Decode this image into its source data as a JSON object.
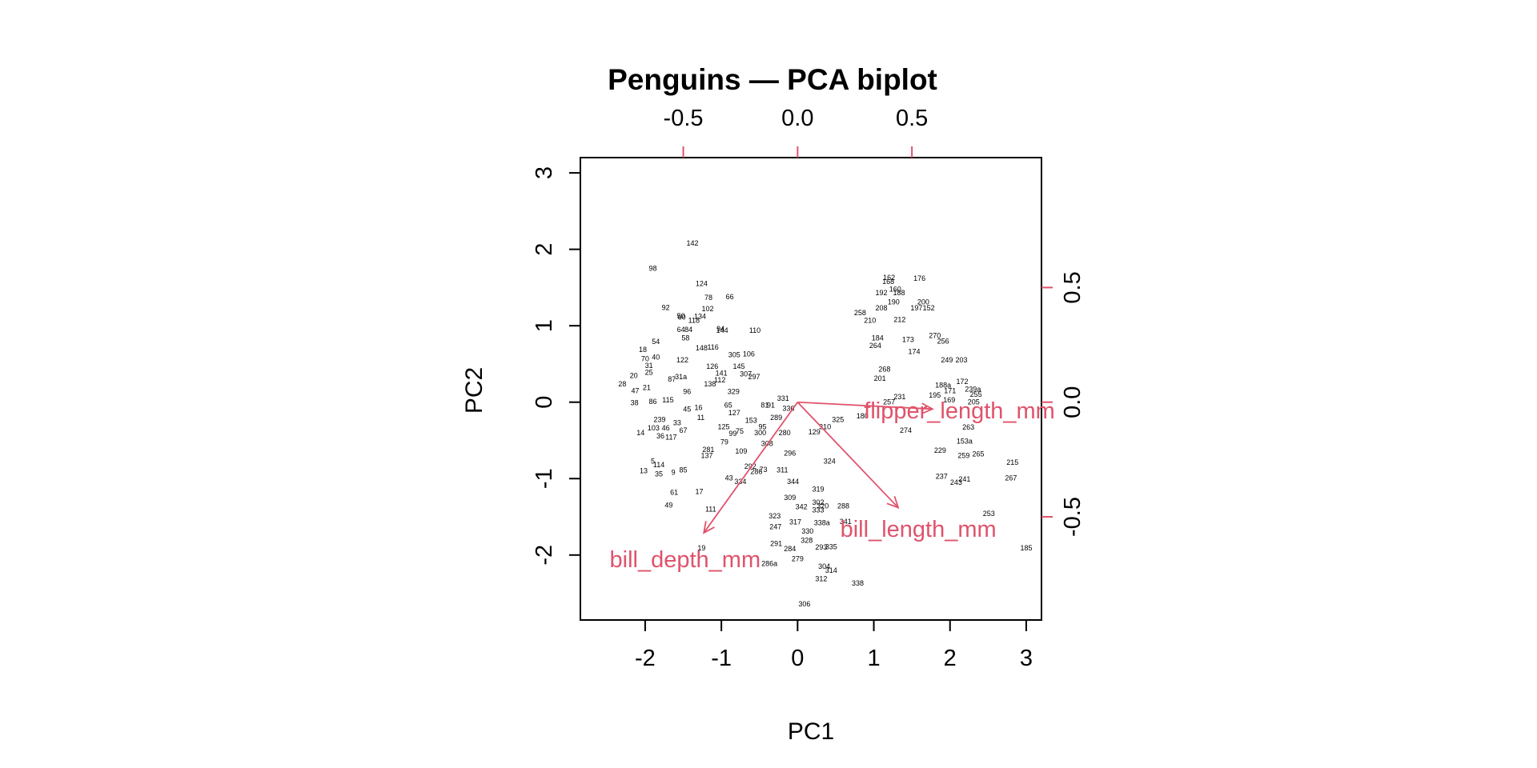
{
  "chart_data": {
    "type": "scatter",
    "title": "Penguins — PCA biplot",
    "xlabel": "PC1",
    "ylabel": "PC2",
    "xlim": [
      -2.85,
      3.2
    ],
    "ylim": [
      -2.85,
      3.2
    ],
    "xticks": [
      "-2",
      "-1",
      "0",
      "1",
      "2",
      "3"
    ],
    "yticks": [
      "-2",
      "-1",
      "0",
      "1",
      "2",
      "3"
    ],
    "top_axis_ticks": [
      "-0.5",
      "0.0",
      "0.5"
    ],
    "right_axis_ticks": [
      "-0.5",
      "0.0",
      "0.5"
    ],
    "loadings_scale": 3.0,
    "arrow_color": "#DF536B",
    "loadings": [
      {
        "name": "bill_depth_mm",
        "x": -0.41,
        "y": -0.57
      },
      {
        "name": "bill_length_mm",
        "x": 0.44,
        "y": -0.46
      },
      {
        "name": "flipper_length_mm",
        "x": 0.59,
        "y": -0.03
      }
    ],
    "observations": [
      {
        "label": "142",
        "x": -1.38,
        "y": 2.08
      },
      {
        "label": "98",
        "x": -1.9,
        "y": 1.75
      },
      {
        "label": "124",
        "x": -1.26,
        "y": 1.55
      },
      {
        "label": "78",
        "x": -1.17,
        "y": 1.37
      },
      {
        "label": "66",
        "x": -0.89,
        "y": 1.38
      },
      {
        "label": "92",
        "x": -1.73,
        "y": 1.24
      },
      {
        "label": "102",
        "x": -1.18,
        "y": 1.22
      },
      {
        "label": "50",
        "x": -1.53,
        "y": 1.13
      },
      {
        "label": "60",
        "x": -1.52,
        "y": 1.11
      },
      {
        "label": "118",
        "x": -1.36,
        "y": 1.07
      },
      {
        "label": "134",
        "x": -1.28,
        "y": 1.12
      },
      {
        "label": "94",
        "x": -1.01,
        "y": 0.96
      },
      {
        "label": "144",
        "x": -0.99,
        "y": 0.94
      },
      {
        "label": "110",
        "x": -0.56,
        "y": 0.94
      },
      {
        "label": "64",
        "x": -1.53,
        "y": 0.95
      },
      {
        "label": "84",
        "x": -1.43,
        "y": 0.95
      },
      {
        "label": "58",
        "x": -1.47,
        "y": 0.84
      },
      {
        "label": "54",
        "x": -1.86,
        "y": 0.79
      },
      {
        "label": "18",
        "x": -2.03,
        "y": 0.69
      },
      {
        "label": "40",
        "x": -1.86,
        "y": 0.59
      },
      {
        "label": "70",
        "x": -2.0,
        "y": 0.57
      },
      {
        "label": "31",
        "x": -1.95,
        "y": 0.48
      },
      {
        "label": "25",
        "x": -1.95,
        "y": 0.39
      },
      {
        "label": "20",
        "x": -2.15,
        "y": 0.35
      },
      {
        "label": "28",
        "x": -2.3,
        "y": 0.24
      },
      {
        "label": "47",
        "x": -2.13,
        "y": 0.15
      },
      {
        "label": "21",
        "x": -1.98,
        "y": 0.19
      },
      {
        "label": "38",
        "x": -2.14,
        "y": -0.01
      },
      {
        "label": "86",
        "x": -1.9,
        "y": 0.01
      },
      {
        "label": "14",
        "x": -2.06,
        "y": -0.4
      },
      {
        "label": "13",
        "x": -2.02,
        "y": -0.9
      },
      {
        "label": "5",
        "x": -1.9,
        "y": -0.77
      },
      {
        "label": "114",
        "x": -1.82,
        "y": -0.82
      },
      {
        "label": "35",
        "x": -1.82,
        "y": -0.94
      },
      {
        "label": "9",
        "x": -1.63,
        "y": -0.92
      },
      {
        "label": "85",
        "x": -1.5,
        "y": -0.89
      },
      {
        "label": "61",
        "x": -1.62,
        "y": -1.18
      },
      {
        "label": "49",
        "x": -1.69,
        "y": -1.35
      },
      {
        "label": "17",
        "x": -1.29,
        "y": -1.17
      },
      {
        "label": "111",
        "x": -1.14,
        "y": -1.4
      },
      {
        "label": "19",
        "x": -1.26,
        "y": -1.91
      },
      {
        "label": "43",
        "x": -0.9,
        "y": -0.99
      },
      {
        "label": "334",
        "x": -0.75,
        "y": -1.04
      },
      {
        "label": "103",
        "x": -1.89,
        "y": -0.34
      },
      {
        "label": "36",
        "x": -1.8,
        "y": -0.44
      },
      {
        "label": "117",
        "x": -1.66,
        "y": -0.46
      },
      {
        "label": "46",
        "x": -1.73,
        "y": -0.34
      },
      {
        "label": "33",
        "x": -1.58,
        "y": -0.27
      },
      {
        "label": "67",
        "x": -1.5,
        "y": -0.37
      },
      {
        "label": "239",
        "x": -1.81,
        "y": -0.23
      },
      {
        "label": "45",
        "x": -1.45,
        "y": -0.09
      },
      {
        "label": "11",
        "x": -1.27,
        "y": -0.2
      },
      {
        "label": "16",
        "x": -1.3,
        "y": -0.07
      },
      {
        "label": "115",
        "x": -1.7,
        "y": 0.03
      },
      {
        "label": "96",
        "x": -1.45,
        "y": 0.14
      },
      {
        "label": "87",
        "x": -1.65,
        "y": 0.3
      },
      {
        "label": "31a",
        "x": -1.53,
        "y": 0.33
      },
      {
        "label": "122",
        "x": -1.51,
        "y": 0.55
      },
      {
        "label": "148",
        "x": -1.26,
        "y": 0.71
      },
      {
        "label": "116",
        "x": -1.11,
        "y": 0.72
      },
      {
        "label": "126",
        "x": -1.12,
        "y": 0.47
      },
      {
        "label": "141",
        "x": -1.0,
        "y": 0.38
      },
      {
        "label": "112",
        "x": -1.02,
        "y": 0.29
      },
      {
        "label": "138",
        "x": -1.15,
        "y": 0.24
      },
      {
        "label": "305",
        "x": -0.83,
        "y": 0.62
      },
      {
        "label": "106",
        "x": -0.64,
        "y": 0.63
      },
      {
        "label": "145",
        "x": -0.77,
        "y": 0.47
      },
      {
        "label": "307",
        "x": -0.68,
        "y": 0.37
      },
      {
        "label": "297",
        "x": -0.57,
        "y": 0.33
      },
      {
        "label": "329",
        "x": -0.84,
        "y": 0.14
      },
      {
        "label": "65",
        "x": -0.91,
        "y": -0.04
      },
      {
        "label": "127",
        "x": -0.83,
        "y": -0.14
      },
      {
        "label": "125",
        "x": -0.97,
        "y": -0.32
      },
      {
        "label": "99",
        "x": -0.85,
        "y": -0.41
      },
      {
        "label": "75",
        "x": -0.76,
        "y": -0.38
      },
      {
        "label": "81",
        "x": -0.43,
        "y": -0.04
      },
      {
        "label": "91",
        "x": -0.35,
        "y": -0.04
      },
      {
        "label": "153",
        "x": -0.61,
        "y": -0.24
      },
      {
        "label": "289",
        "x": -0.28,
        "y": -0.2
      },
      {
        "label": "95",
        "x": -0.46,
        "y": -0.32
      },
      {
        "label": "300",
        "x": -0.49,
        "y": -0.4
      },
      {
        "label": "280",
        "x": -0.17,
        "y": -0.4
      },
      {
        "label": "79",
        "x": -0.96,
        "y": -0.52
      },
      {
        "label": "281",
        "x": -1.17,
        "y": -0.62
      },
      {
        "label": "137",
        "x": -1.19,
        "y": -0.7
      },
      {
        "label": "109",
        "x": -0.74,
        "y": -0.64
      },
      {
        "label": "308",
        "x": -0.4,
        "y": -0.54
      },
      {
        "label": "296",
        "x": -0.1,
        "y": -0.67
      },
      {
        "label": "292",
        "x": -0.62,
        "y": -0.84
      },
      {
        "label": "73",
        "x": -0.45,
        "y": -0.88
      },
      {
        "label": "286",
        "x": -0.54,
        "y": -0.91
      },
      {
        "label": "311",
        "x": -0.2,
        "y": -0.89
      },
      {
        "label": "344",
        "x": -0.06,
        "y": -1.04
      },
      {
        "label": "331",
        "x": -0.19,
        "y": 0.05
      },
      {
        "label": "336",
        "x": -0.12,
        "y": -0.08
      },
      {
        "label": "310",
        "x": 0.36,
        "y": -0.32
      },
      {
        "label": "325",
        "x": 0.53,
        "y": -0.23
      },
      {
        "label": "129",
        "x": 0.22,
        "y": -0.39
      },
      {
        "label": "324",
        "x": 0.42,
        "y": -0.77
      },
      {
        "label": "319",
        "x": 0.27,
        "y": -1.14
      },
      {
        "label": "309",
        "x": -0.1,
        "y": -1.25
      },
      {
        "label": "342",
        "x": 0.05,
        "y": -1.37
      },
      {
        "label": "302",
        "x": 0.27,
        "y": -1.31
      },
      {
        "label": "320",
        "x": 0.33,
        "y": -1.36
      },
      {
        "label": "288",
        "x": 0.6,
        "y": -1.36
      },
      {
        "label": "333",
        "x": 0.27,
        "y": -1.41
      },
      {
        "label": "323",
        "x": -0.3,
        "y": -1.49
      },
      {
        "label": "317",
        "x": -0.03,
        "y": -1.57
      },
      {
        "label": "338a",
        "x": 0.32,
        "y": -1.58
      },
      {
        "label": "341",
        "x": 0.63,
        "y": -1.56
      },
      {
        "label": "247",
        "x": -0.29,
        "y": -1.63
      },
      {
        "label": "330",
        "x": 0.13,
        "y": -1.69
      },
      {
        "label": "291",
        "x": -0.28,
        "y": -1.85
      },
      {
        "label": "328",
        "x": 0.12,
        "y": -1.81
      },
      {
        "label": "284",
        "x": -0.1,
        "y": -1.92
      },
      {
        "label": "293",
        "x": 0.31,
        "y": -1.9
      },
      {
        "label": "335",
        "x": 0.44,
        "y": -1.89
      },
      {
        "label": "279",
        "x": 0.0,
        "y": -2.05
      },
      {
        "label": "286a",
        "x": -0.37,
        "y": -2.11
      },
      {
        "label": "304",
        "x": 0.35,
        "y": -2.15
      },
      {
        "label": "314",
        "x": 0.44,
        "y": -2.2
      },
      {
        "label": "312",
        "x": 0.31,
        "y": -2.31
      },
      {
        "label": "338",
        "x": 0.79,
        "y": -2.37
      },
      {
        "label": "306",
        "x": 0.09,
        "y": -2.64
      },
      {
        "label": "162",
        "x": 1.2,
        "y": 1.63
      },
      {
        "label": "176",
        "x": 1.6,
        "y": 1.62
      },
      {
        "label": "168",
        "x": 1.19,
        "y": 1.58
      },
      {
        "label": "160",
        "x": 1.28,
        "y": 1.48
      },
      {
        "label": "192",
        "x": 1.1,
        "y": 1.43
      },
      {
        "label": "188",
        "x": 1.33,
        "y": 1.43
      },
      {
        "label": "190",
        "x": 1.26,
        "y": 1.31
      },
      {
        "label": "200",
        "x": 1.65,
        "y": 1.31
      },
      {
        "label": "197",
        "x": 1.56,
        "y": 1.23
      },
      {
        "label": "152",
        "x": 1.72,
        "y": 1.23
      },
      {
        "label": "258",
        "x": 0.82,
        "y": 1.17
      },
      {
        "label": "208",
        "x": 1.1,
        "y": 1.23
      },
      {
        "label": "210",
        "x": 0.95,
        "y": 1.07
      },
      {
        "label": "212",
        "x": 1.34,
        "y": 1.08
      },
      {
        "label": "184",
        "x": 1.05,
        "y": 0.84
      },
      {
        "label": "264",
        "x": 1.02,
        "y": 0.74
      },
      {
        "label": "173",
        "x": 1.45,
        "y": 0.82
      },
      {
        "label": "270",
        "x": 1.8,
        "y": 0.87
      },
      {
        "label": "256",
        "x": 1.91,
        "y": 0.8
      },
      {
        "label": "174",
        "x": 1.53,
        "y": 0.66
      },
      {
        "label": "249",
        "x": 1.96,
        "y": 0.55
      },
      {
        "label": "203",
        "x": 2.15,
        "y": 0.55
      },
      {
        "label": "201",
        "x": 1.08,
        "y": 0.31
      },
      {
        "label": "268",
        "x": 1.14,
        "y": 0.43
      },
      {
        "label": "231",
        "x": 1.34,
        "y": 0.07
      },
      {
        "label": "172",
        "x": 2.16,
        "y": 0.27
      },
      {
        "label": "239a",
        "x": 2.3,
        "y": 0.17
      },
      {
        "label": "255",
        "x": 2.34,
        "y": 0.1
      },
      {
        "label": "205",
        "x": 2.31,
        "y": 0.0
      },
      {
        "label": "188a",
        "x": 1.91,
        "y": 0.22
      },
      {
        "label": "171",
        "x": 2.0,
        "y": 0.15
      },
      {
        "label": "195",
        "x": 1.8,
        "y": 0.09
      },
      {
        "label": "169",
        "x": 1.99,
        "y": 0.03
      },
      {
        "label": "257",
        "x": 1.2,
        "y": 0.0
      },
      {
        "label": "180",
        "x": 0.85,
        "y": -0.18
      },
      {
        "label": "274",
        "x": 1.42,
        "y": -0.37
      },
      {
        "label": "263",
        "x": 2.24,
        "y": -0.33
      },
      {
        "label": "153a",
        "x": 2.19,
        "y": -0.51
      },
      {
        "label": "229",
        "x": 1.87,
        "y": -0.63
      },
      {
        "label": "259",
        "x": 2.18,
        "y": -0.7
      },
      {
        "label": "265",
        "x": 2.37,
        "y": -0.68
      },
      {
        "label": "215",
        "x": 2.82,
        "y": -0.79
      },
      {
        "label": "267",
        "x": 2.8,
        "y": -0.99
      },
      {
        "label": "237",
        "x": 1.89,
        "y": -0.97
      },
      {
        "label": "241",
        "x": 2.19,
        "y": -1.01
      },
      {
        "label": "243",
        "x": 2.08,
        "y": -1.05
      },
      {
        "label": "253",
        "x": 2.51,
        "y": -1.46
      },
      {
        "label": "185",
        "x": 3.0,
        "y": -1.91
      }
    ]
  }
}
